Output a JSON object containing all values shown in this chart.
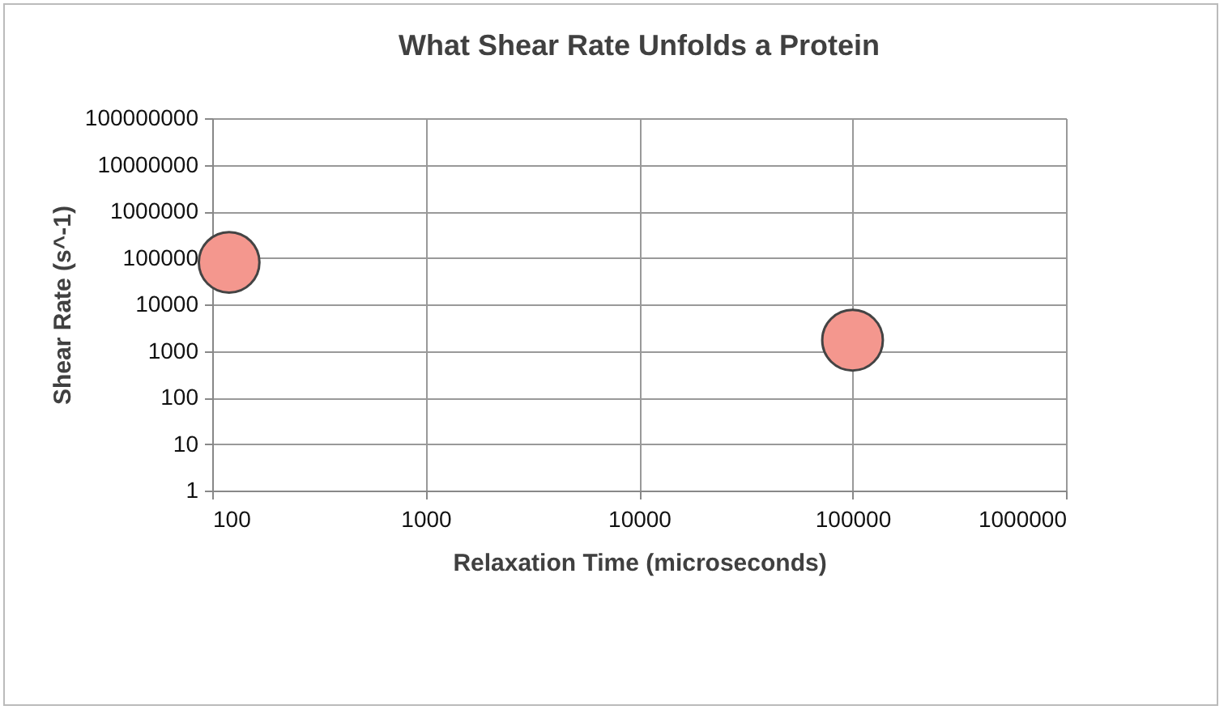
{
  "chart_data": {
    "type": "scatter",
    "title": "What Shear Rate Unfolds a Protein",
    "xlabel": "Relaxation Time (microseconds)",
    "ylabel": "Shear Rate (s^-1)",
    "x": [
      120,
      100000
    ],
    "series": [
      {
        "color": "#f4978e",
        "values": [
          80000,
          1700
        ]
      }
    ],
    "log": "xy",
    "xlim": [
      100,
      1000000
    ],
    "xticks": [
      100,
      1000,
      10000,
      100000,
      1000000
    ],
    "ylim": [
      1,
      100000000
    ],
    "yticks": [
      1,
      10,
      100,
      1000,
      10000,
      100000,
      1000000,
      10000000,
      100000000
    ],
    "grid": true,
    "marker": "circle"
  }
}
